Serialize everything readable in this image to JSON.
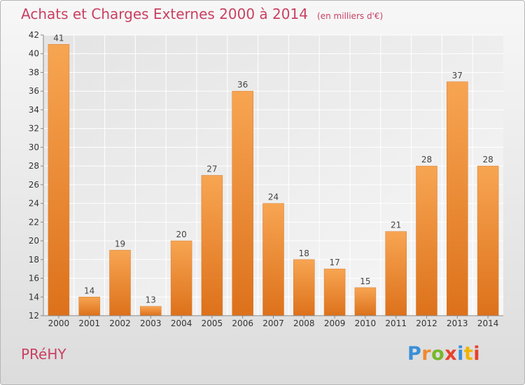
{
  "chart_data": {
    "type": "bar",
    "title": "Achats et Charges Externes 2000 à 2014",
    "subtitle": "(en milliers d'€)",
    "categories": [
      "2000",
      "2001",
      "2002",
      "2003",
      "2004",
      "2005",
      "2006",
      "2007",
      "2008",
      "2009",
      "2010",
      "2011",
      "2012",
      "2013",
      "2014"
    ],
    "values": [
      41,
      14,
      19,
      13,
      20,
      27,
      36,
      24,
      18,
      17,
      15,
      21,
      28,
      37,
      28
    ],
    "ylim": [
      12,
      42
    ],
    "yticks": [
      12,
      14,
      16,
      18,
      20,
      22,
      24,
      26,
      28,
      30,
      32,
      34,
      36,
      38,
      40,
      42
    ],
    "xlabel": "",
    "ylabel": "",
    "grid": true,
    "bar_color": "#f0892e",
    "label_color": "#444444"
  },
  "commune": "PRéHY",
  "logo": {
    "text": "Proxiti",
    "letters": [
      "P",
      "r",
      "o",
      "x",
      "i",
      "t",
      "i"
    ],
    "colors": [
      "#3a8fd8",
      "#f0892e",
      "#76b82a",
      "#e8412c",
      "#3a8fd8",
      "#f0b400",
      "#e8412c"
    ]
  }
}
